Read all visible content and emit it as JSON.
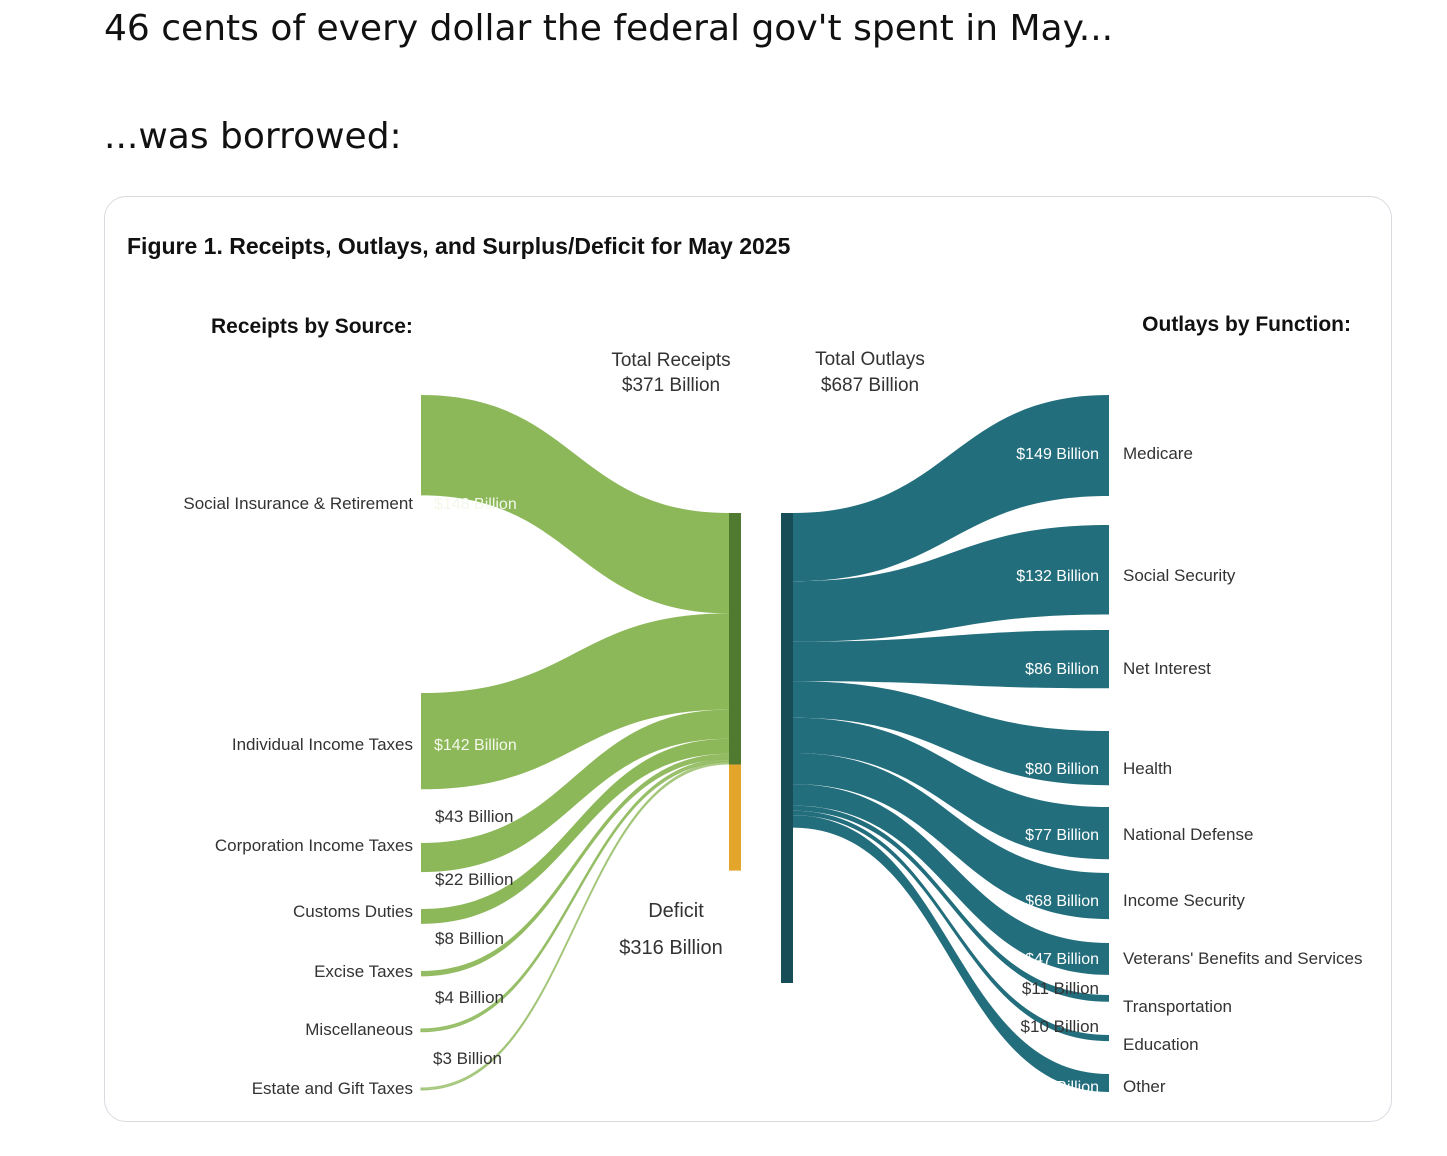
{
  "post": {
    "line1": "46 cents of every dollar the federal gov't spent in May...",
    "line2": "...was borrowed:"
  },
  "colors": {
    "receipts": "#8db85a",
    "receipts_bar": "#4f7a2f",
    "outlays": "#236e7c",
    "outlays_bar": "#174d57",
    "deficit": "#e3a52a"
  },
  "chart_data": {
    "type": "sankey",
    "title": "Figure 1. Receipts, Outlays, and Surplus/Deficit for May 2025",
    "receipts_heading": "Receipts by Source:",
    "outlays_heading": "Outlays by Function:",
    "total_receipts": {
      "label": "Total Receipts",
      "value_label": "$371 Billion",
      "value": 371
    },
    "total_outlays": {
      "label": "Total Outlays",
      "value_label": "$687 Billion",
      "value": 687
    },
    "deficit": {
      "label": "Deficit",
      "value_label": "$316 Billion",
      "value": 316
    },
    "receipts": [
      {
        "name": "Social Insurance & Retirement",
        "value": 148,
        "label": "$148 Billion"
      },
      {
        "name": "Individual Income Taxes",
        "value": 142,
        "label": "$142 Billion"
      },
      {
        "name": "Corporation Income Taxes",
        "value": 43,
        "label": "$43 Billion"
      },
      {
        "name": "Customs Duties",
        "value": 22,
        "label": "$22 Billion"
      },
      {
        "name": "Excise Taxes",
        "value": 8,
        "label": "$8 Billion"
      },
      {
        "name": "Miscellaneous",
        "value": 4,
        "label": "$4 Billion"
      },
      {
        "name": "Estate and Gift Taxes",
        "value": 3,
        "label": "$3 Billion"
      }
    ],
    "outlays": [
      {
        "name": "Medicare",
        "value": 149,
        "label": "$149 Billion"
      },
      {
        "name": "Social Security",
        "value": 132,
        "label": "$132 Billion"
      },
      {
        "name": "Net Interest",
        "value": 86,
        "label": "$86 Billion"
      },
      {
        "name": "Health",
        "value": 80,
        "label": "$80 Billion"
      },
      {
        "name": "National Defense",
        "value": 77,
        "label": "$77 Billion"
      },
      {
        "name": "Income Security",
        "value": 68,
        "label": "$68 Billion"
      },
      {
        "name": "Veterans' Benefits and Services",
        "value": 47,
        "label": "$47 Billion"
      },
      {
        "name": "Transportation",
        "value": 11,
        "label": "$11 Billion"
      },
      {
        "name": "Education",
        "value": 10,
        "label": "$10 Billion"
      },
      {
        "name": "Other",
        "value": 27,
        "label": "$27 Billion"
      }
    ]
  }
}
